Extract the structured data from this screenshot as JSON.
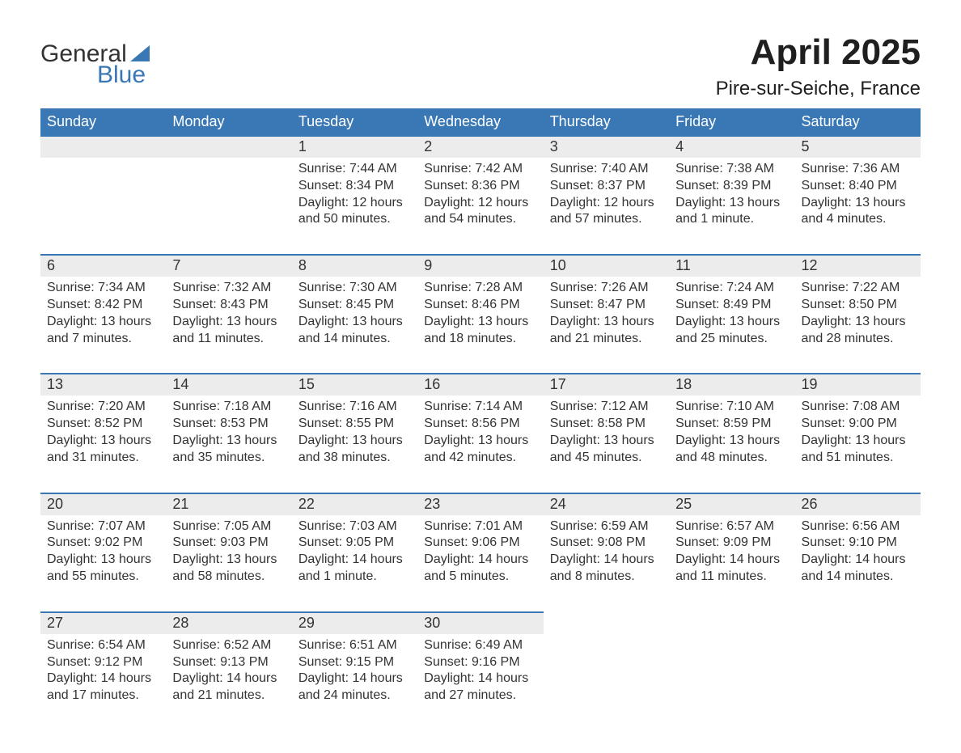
{
  "logo": {
    "general": "General",
    "blue": "Blue",
    "logo_color_text": "#333333",
    "logo_color_blue": "#3a78b5"
  },
  "title": "April 2025",
  "location": "Pire-sur-Seiche, France",
  "colors": {
    "header_bg": "#3a78b5",
    "header_text": "#ffffff",
    "daynum_bg": "#ececec",
    "row_top_border": "#3a78b5",
    "body_text": "#333333"
  },
  "weekdays": [
    "Sunday",
    "Monday",
    "Tuesday",
    "Wednesday",
    "Thursday",
    "Friday",
    "Saturday"
  ],
  "weeks": [
    [
      {
        "blank": true
      },
      {
        "blank": true
      },
      {
        "num": "1",
        "sunrise": "Sunrise: 7:44 AM",
        "sunset": "Sunset: 8:34 PM",
        "day1": "Daylight: 12 hours",
        "day2": "and 50 minutes."
      },
      {
        "num": "2",
        "sunrise": "Sunrise: 7:42 AM",
        "sunset": "Sunset: 8:36 PM",
        "day1": "Daylight: 12 hours",
        "day2": "and 54 minutes."
      },
      {
        "num": "3",
        "sunrise": "Sunrise: 7:40 AM",
        "sunset": "Sunset: 8:37 PM",
        "day1": "Daylight: 12 hours",
        "day2": "and 57 minutes."
      },
      {
        "num": "4",
        "sunrise": "Sunrise: 7:38 AM",
        "sunset": "Sunset: 8:39 PM",
        "day1": "Daylight: 13 hours",
        "day2": "and 1 minute."
      },
      {
        "num": "5",
        "sunrise": "Sunrise: 7:36 AM",
        "sunset": "Sunset: 8:40 PM",
        "day1": "Daylight: 13 hours",
        "day2": "and 4 minutes."
      }
    ],
    [
      {
        "num": "6",
        "sunrise": "Sunrise: 7:34 AM",
        "sunset": "Sunset: 8:42 PM",
        "day1": "Daylight: 13 hours",
        "day2": "and 7 minutes."
      },
      {
        "num": "7",
        "sunrise": "Sunrise: 7:32 AM",
        "sunset": "Sunset: 8:43 PM",
        "day1": "Daylight: 13 hours",
        "day2": "and 11 minutes."
      },
      {
        "num": "8",
        "sunrise": "Sunrise: 7:30 AM",
        "sunset": "Sunset: 8:45 PM",
        "day1": "Daylight: 13 hours",
        "day2": "and 14 minutes."
      },
      {
        "num": "9",
        "sunrise": "Sunrise: 7:28 AM",
        "sunset": "Sunset: 8:46 PM",
        "day1": "Daylight: 13 hours",
        "day2": "and 18 minutes."
      },
      {
        "num": "10",
        "sunrise": "Sunrise: 7:26 AM",
        "sunset": "Sunset: 8:47 PM",
        "day1": "Daylight: 13 hours",
        "day2": "and 21 minutes."
      },
      {
        "num": "11",
        "sunrise": "Sunrise: 7:24 AM",
        "sunset": "Sunset: 8:49 PM",
        "day1": "Daylight: 13 hours",
        "day2": "and 25 minutes."
      },
      {
        "num": "12",
        "sunrise": "Sunrise: 7:22 AM",
        "sunset": "Sunset: 8:50 PM",
        "day1": "Daylight: 13 hours",
        "day2": "and 28 minutes."
      }
    ],
    [
      {
        "num": "13",
        "sunrise": "Sunrise: 7:20 AM",
        "sunset": "Sunset: 8:52 PM",
        "day1": "Daylight: 13 hours",
        "day2": "and 31 minutes."
      },
      {
        "num": "14",
        "sunrise": "Sunrise: 7:18 AM",
        "sunset": "Sunset: 8:53 PM",
        "day1": "Daylight: 13 hours",
        "day2": "and 35 minutes."
      },
      {
        "num": "15",
        "sunrise": "Sunrise: 7:16 AM",
        "sunset": "Sunset: 8:55 PM",
        "day1": "Daylight: 13 hours",
        "day2": "and 38 minutes."
      },
      {
        "num": "16",
        "sunrise": "Sunrise: 7:14 AM",
        "sunset": "Sunset: 8:56 PM",
        "day1": "Daylight: 13 hours",
        "day2": "and 42 minutes."
      },
      {
        "num": "17",
        "sunrise": "Sunrise: 7:12 AM",
        "sunset": "Sunset: 8:58 PM",
        "day1": "Daylight: 13 hours",
        "day2": "and 45 minutes."
      },
      {
        "num": "18",
        "sunrise": "Sunrise: 7:10 AM",
        "sunset": "Sunset: 8:59 PM",
        "day1": "Daylight: 13 hours",
        "day2": "and 48 minutes."
      },
      {
        "num": "19",
        "sunrise": "Sunrise: 7:08 AM",
        "sunset": "Sunset: 9:00 PM",
        "day1": "Daylight: 13 hours",
        "day2": "and 51 minutes."
      }
    ],
    [
      {
        "num": "20",
        "sunrise": "Sunrise: 7:07 AM",
        "sunset": "Sunset: 9:02 PM",
        "day1": "Daylight: 13 hours",
        "day2": "and 55 minutes."
      },
      {
        "num": "21",
        "sunrise": "Sunrise: 7:05 AM",
        "sunset": "Sunset: 9:03 PM",
        "day1": "Daylight: 13 hours",
        "day2": "and 58 minutes."
      },
      {
        "num": "22",
        "sunrise": "Sunrise: 7:03 AM",
        "sunset": "Sunset: 9:05 PM",
        "day1": "Daylight: 14 hours",
        "day2": "and 1 minute."
      },
      {
        "num": "23",
        "sunrise": "Sunrise: 7:01 AM",
        "sunset": "Sunset: 9:06 PM",
        "day1": "Daylight: 14 hours",
        "day2": "and 5 minutes."
      },
      {
        "num": "24",
        "sunrise": "Sunrise: 6:59 AM",
        "sunset": "Sunset: 9:08 PM",
        "day1": "Daylight: 14 hours",
        "day2": "and 8 minutes."
      },
      {
        "num": "25",
        "sunrise": "Sunrise: 6:57 AM",
        "sunset": "Sunset: 9:09 PM",
        "day1": "Daylight: 14 hours",
        "day2": "and 11 minutes."
      },
      {
        "num": "26",
        "sunrise": "Sunrise: 6:56 AM",
        "sunset": "Sunset: 9:10 PM",
        "day1": "Daylight: 14 hours",
        "day2": "and 14 minutes."
      }
    ],
    [
      {
        "num": "27",
        "sunrise": "Sunrise: 6:54 AM",
        "sunset": "Sunset: 9:12 PM",
        "day1": "Daylight: 14 hours",
        "day2": "and 17 minutes."
      },
      {
        "num": "28",
        "sunrise": "Sunrise: 6:52 AM",
        "sunset": "Sunset: 9:13 PM",
        "day1": "Daylight: 14 hours",
        "day2": "and 21 minutes."
      },
      {
        "num": "29",
        "sunrise": "Sunrise: 6:51 AM",
        "sunset": "Sunset: 9:15 PM",
        "day1": "Daylight: 14 hours",
        "day2": "and 24 minutes."
      },
      {
        "num": "30",
        "sunrise": "Sunrise: 6:49 AM",
        "sunset": "Sunset: 9:16 PM",
        "day1": "Daylight: 14 hours",
        "day2": "and 27 minutes."
      },
      {
        "blank": true
      },
      {
        "blank": true
      },
      {
        "blank": true
      }
    ]
  ]
}
